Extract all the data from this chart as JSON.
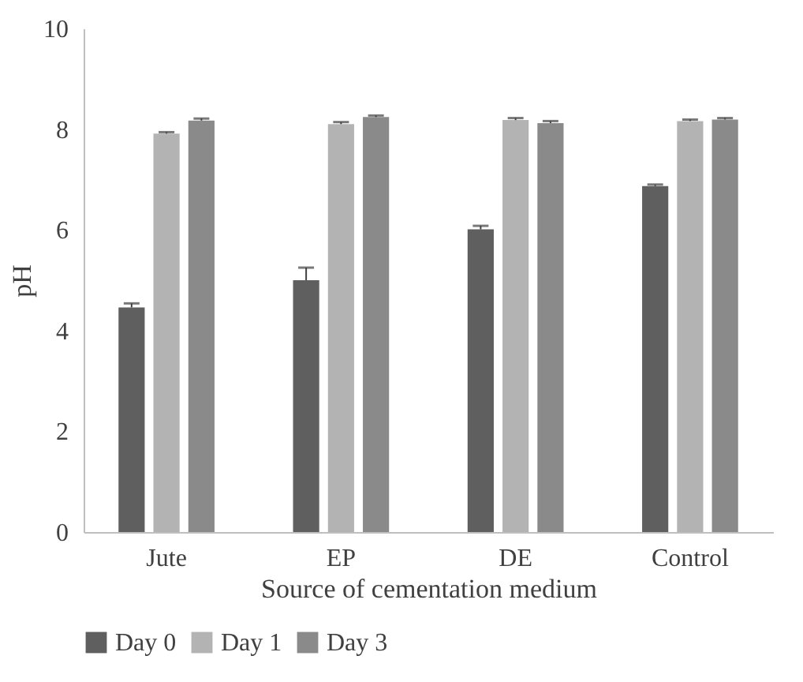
{
  "chart_data": {
    "type": "bar",
    "xlabel": "Source of cementation medium",
    "ylabel": "pH",
    "categories": [
      "Jute",
      "EP",
      "DE",
      "Control"
    ],
    "series": [
      {
        "name": "Day 0",
        "color": "#5f5f5f",
        "values": [
          4.46,
          5.0,
          6.01,
          6.87
        ],
        "errors": [
          0.08,
          0.25,
          0.07,
          0.03
        ]
      },
      {
        "name": "Day 1",
        "color": "#b3b3b3",
        "values": [
          7.91,
          8.1,
          8.18,
          8.16
        ],
        "errors": [
          0.03,
          0.04,
          0.04,
          0.03
        ]
      },
      {
        "name": "Day 3",
        "color": "#8a8a8a",
        "values": [
          8.17,
          8.24,
          8.12,
          8.19
        ],
        "errors": [
          0.04,
          0.03,
          0.04,
          0.03
        ]
      }
    ],
    "ylim": [
      0,
      10
    ],
    "yticks": [
      0,
      2,
      4,
      6,
      8,
      10
    ],
    "grid": false,
    "legend": "bottom"
  }
}
